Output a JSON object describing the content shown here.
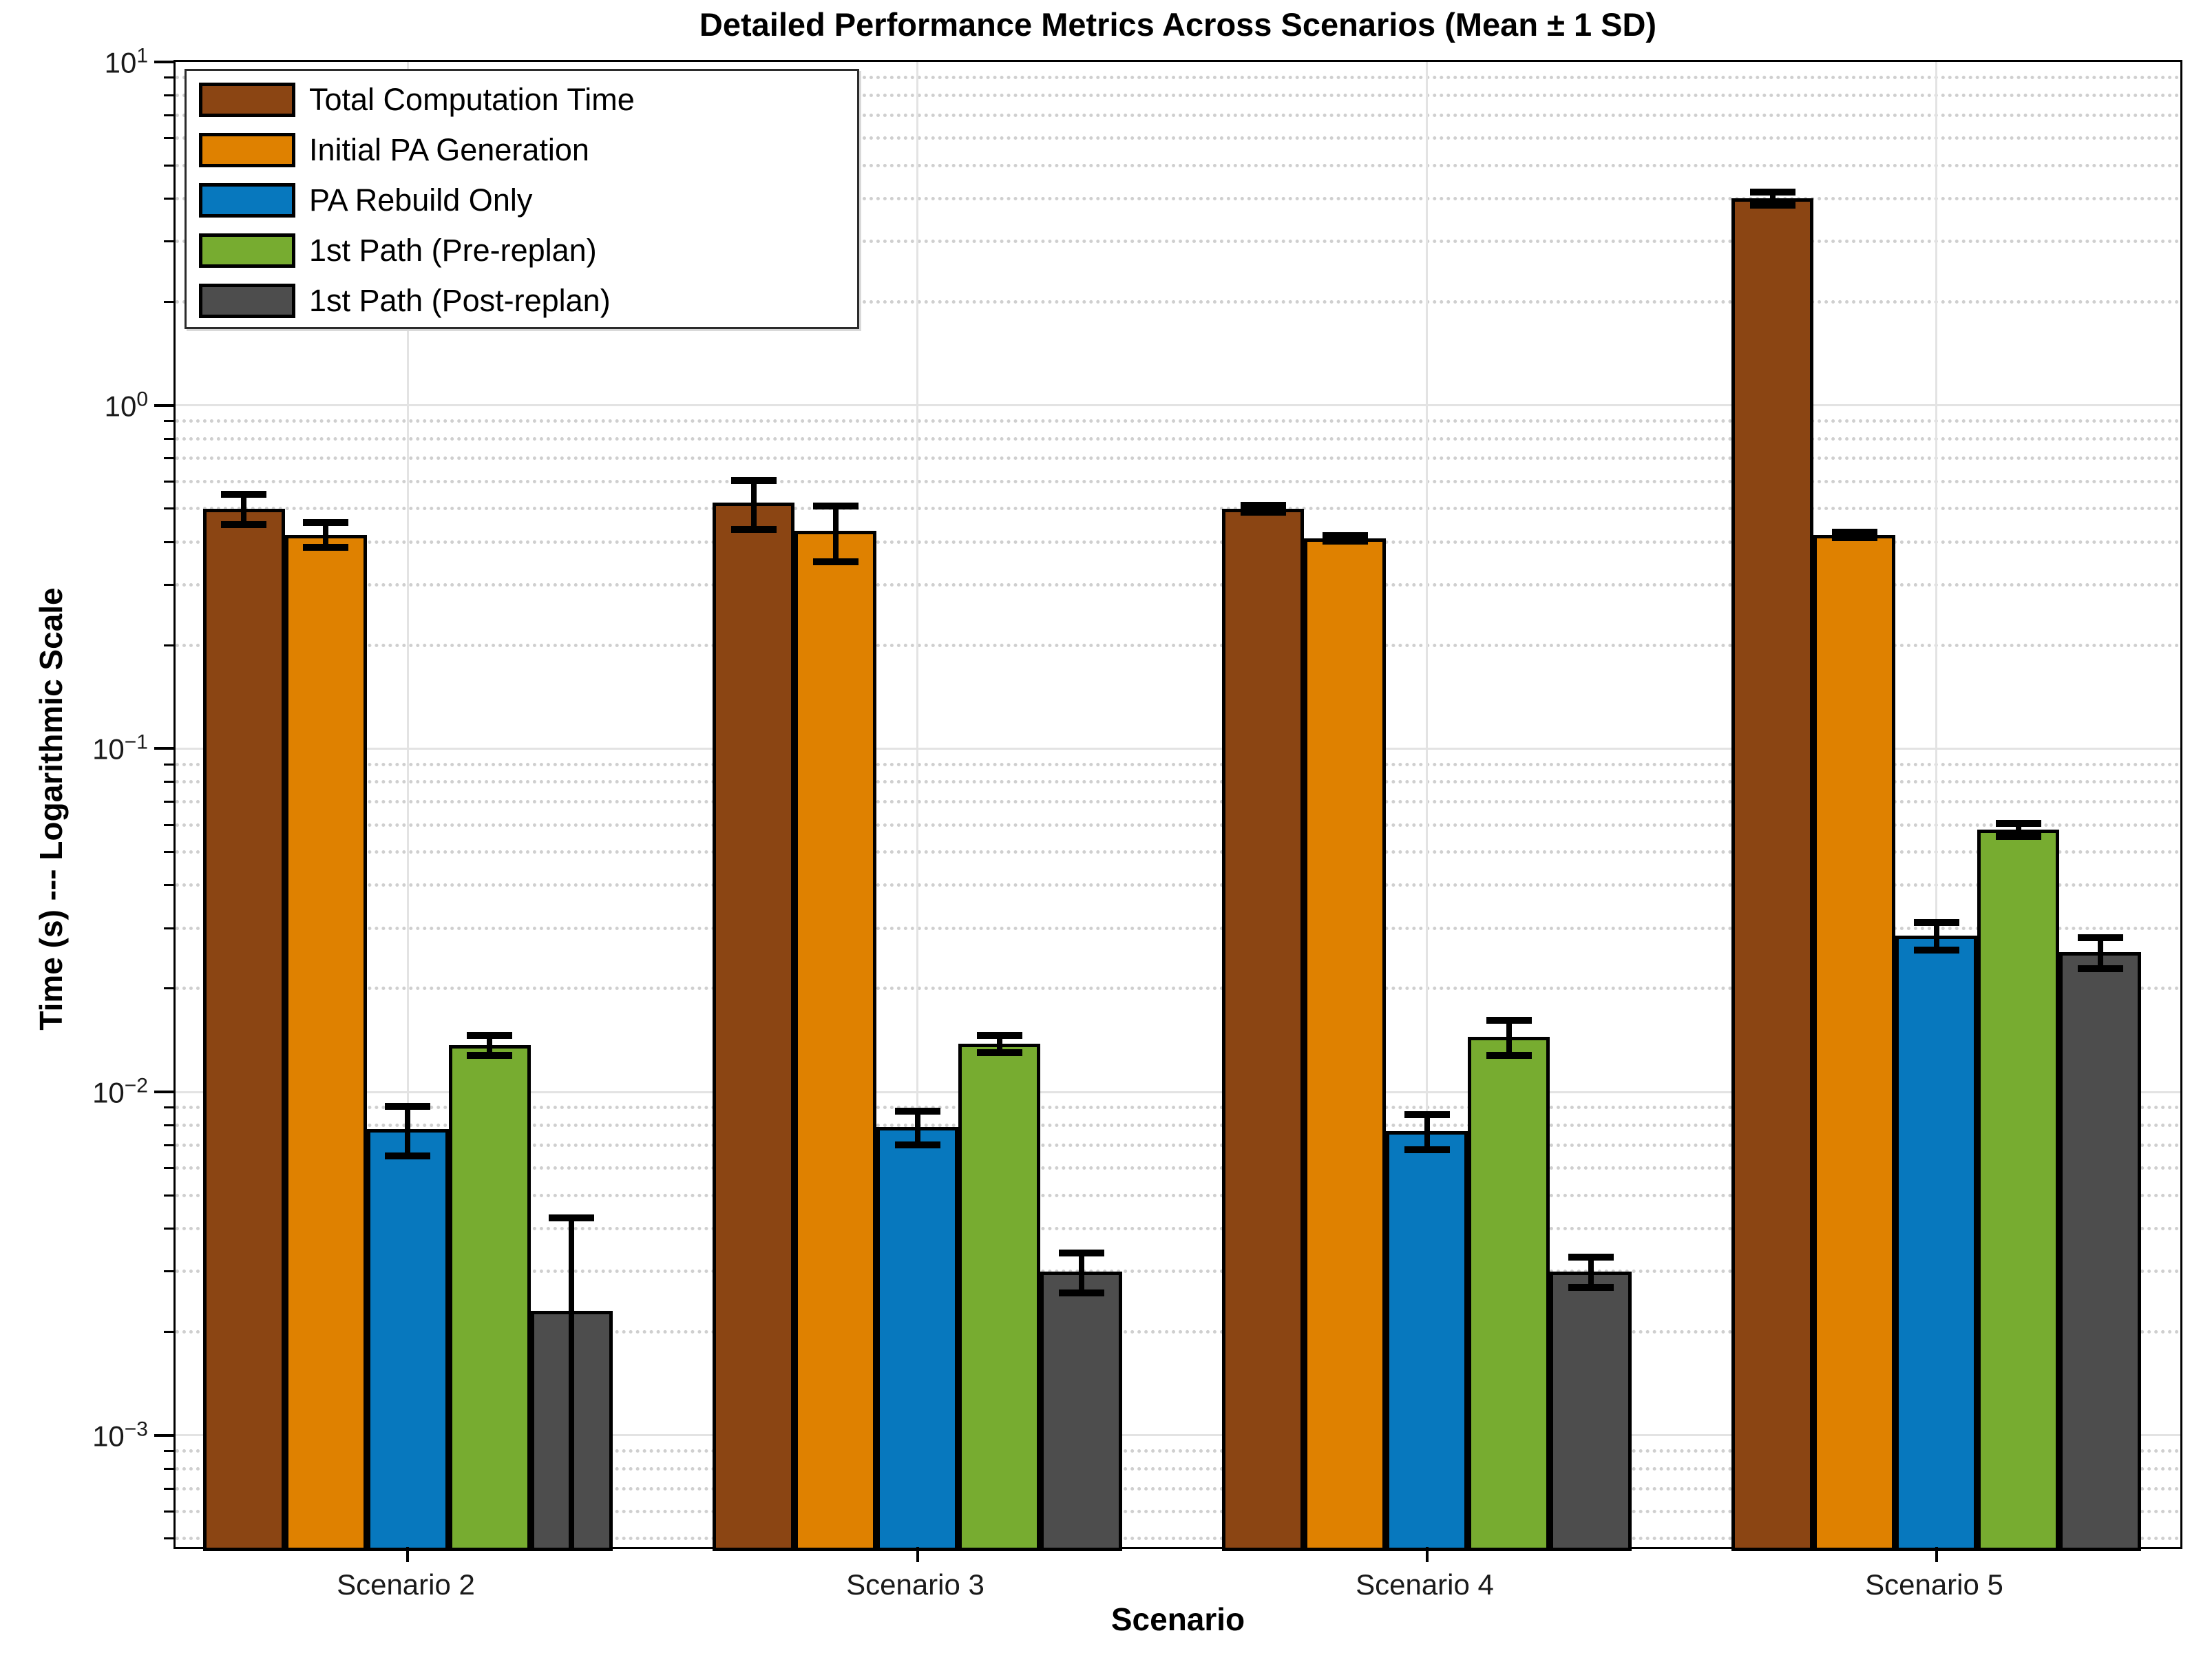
{
  "title": "Detailed Performance Metrics Across Scenarios (Mean ± 1 SD)",
  "chart_data": {
    "type": "bar",
    "title": "Detailed Performance Metrics Across Scenarios (Mean ± 1 SD)",
    "xlabel": "Scenario",
    "ylabel": "Time (s) --- Logarithmic Scale",
    "yscale": "log",
    "ylim": [
      0.00046,
      10
    ],
    "grid": "horizontal major solid + minor dotted; vertical solid at category centers",
    "legend_position": "top-left inside axes",
    "error_bars": "±1 SD, black caps",
    "categories": [
      "Scenario 2",
      "Scenario 3",
      "Scenario 4",
      "Scenario 5"
    ],
    "y_ticks": [
      {
        "value": 10,
        "base": "10",
        "exp": "1"
      },
      {
        "value": 1,
        "base": "10",
        "exp": "0"
      },
      {
        "value": 0.1,
        "base": "10",
        "exp": "−1"
      },
      {
        "value": 0.01,
        "base": "10",
        "exp": "−2"
      },
      {
        "value": 0.001,
        "base": "10",
        "exp": "−3"
      }
    ],
    "series": [
      {
        "name": "Total Computation Time",
        "color": "#8B4513",
        "means": [
          0.5,
          0.52,
          0.5,
          4.0
        ],
        "sds": [
          0.05,
          0.085,
          0.012,
          0.18
        ]
      },
      {
        "name": "Initial PA Generation",
        "color": "#DF8100",
        "means": [
          0.42,
          0.43,
          0.41,
          0.42
        ],
        "sds": [
          0.035,
          0.08,
          0.008,
          0.008
        ]
      },
      {
        "name": "PA Rebuild Only",
        "color": "#0778BE",
        "means": [
          0.0078,
          0.0079,
          0.0077,
          0.0285
        ],
        "sds": [
          0.0013,
          0.0009,
          0.0009,
          0.0026
        ]
      },
      {
        "name": "1st Path (Pre-replan)",
        "color": "#77AC30",
        "means": [
          0.0137,
          0.0138,
          0.0145,
          0.058
        ],
        "sds": [
          0.0009,
          0.0008,
          0.0017,
          0.0025
        ]
      },
      {
        "name": "1st Path (Post-replan)",
        "color": "#4D4D4D",
        "means": [
          0.0023,
          0.003,
          0.003,
          0.0255
        ],
        "sds": [
          0.002,
          0.0004,
          0.0003,
          0.0026
        ]
      }
    ]
  }
}
